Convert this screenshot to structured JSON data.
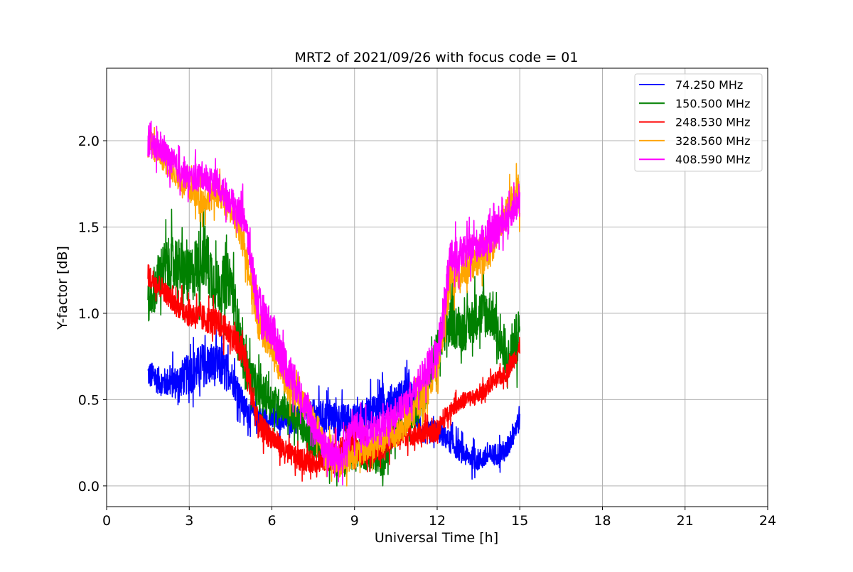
{
  "chart_data": {
    "type": "line",
    "title": "MRT2 of 2021/09/26 with focus code = 01",
    "xlabel": "Universal Time [h]",
    "ylabel": "Y-factor [dB]",
    "xlim": [
      0,
      24
    ],
    "ylim": [
      -0.12,
      2.42
    ],
    "xticks": [
      0,
      3,
      6,
      9,
      12,
      15,
      18,
      21,
      24
    ],
    "xtick_labels": [
      "0",
      "3",
      "6",
      "9",
      "12",
      "15",
      "18",
      "21",
      "24"
    ],
    "yticks": [
      0.0,
      0.5,
      1.0,
      1.5,
      2.0
    ],
    "ytick_labels": [
      "0.0",
      "0.5",
      "1.0",
      "1.5",
      "2.0"
    ],
    "grid": true,
    "legend_position": "top-right",
    "series": [
      {
        "name": "74.250 MHz",
        "color": "#0000ff",
        "x": [
          1.5,
          2.0,
          2.5,
          3.0,
          3.5,
          4.0,
          4.5,
          5.0,
          5.5,
          6.0,
          6.5,
          7.0,
          7.5,
          8.0,
          8.5,
          9.0,
          9.5,
          10.0,
          10.5,
          11.0,
          11.5,
          12.0,
          12.5,
          13.0,
          13.5,
          14.0,
          14.5,
          15.0
        ],
        "y": [
          0.65,
          0.6,
          0.6,
          0.65,
          0.7,
          0.7,
          0.65,
          0.45,
          0.4,
          0.38,
          0.38,
          0.4,
          0.42,
          0.4,
          0.38,
          0.38,
          0.42,
          0.48,
          0.5,
          0.55,
          0.3,
          0.32,
          0.25,
          0.18,
          0.15,
          0.18,
          0.2,
          0.4
        ],
        "noise": [
          0.1,
          0.1,
          0.12,
          0.15,
          0.16,
          0.15,
          0.12,
          0.1,
          0.08,
          0.07,
          0.07,
          0.08,
          0.1,
          0.12,
          0.12,
          0.12,
          0.12,
          0.12,
          0.12,
          0.12,
          0.08,
          0.08,
          0.08,
          0.08,
          0.08,
          0.08,
          0.08,
          0.1
        ]
      },
      {
        "name": "150.500 MHz",
        "color": "#008000",
        "x": [
          1.5,
          2.0,
          2.5,
          3.0,
          3.5,
          4.0,
          4.5,
          5.0,
          5.5,
          6.0,
          6.5,
          7.0,
          7.5,
          8.0,
          8.5,
          9.0,
          9.5,
          10.0,
          10.5,
          11.0,
          11.5,
          12.0,
          12.5,
          13.0,
          13.5,
          14.0,
          14.5,
          15.0
        ],
        "y": [
          1.05,
          1.25,
          1.3,
          1.2,
          1.35,
          1.15,
          1.2,
          0.7,
          0.55,
          0.5,
          0.45,
          0.35,
          0.25,
          0.18,
          0.12,
          0.2,
          0.15,
          0.12,
          0.3,
          0.4,
          0.5,
          0.8,
          0.95,
          0.9,
          1.0,
          1.0,
          0.7,
          0.9
        ],
        "noise": [
          0.15,
          0.2,
          0.2,
          0.2,
          0.25,
          0.2,
          0.2,
          0.15,
          0.15,
          0.12,
          0.1,
          0.1,
          0.1,
          0.1,
          0.1,
          0.1,
          0.08,
          0.08,
          0.1,
          0.1,
          0.12,
          0.15,
          0.18,
          0.15,
          0.18,
          0.18,
          0.15,
          0.2
        ]
      },
      {
        "name": "248.530 MHz",
        "color": "#ff0000",
        "x": [
          1.5,
          2.0,
          2.5,
          3.0,
          3.5,
          4.0,
          4.5,
          5.0,
          5.5,
          6.0,
          6.5,
          7.0,
          7.5,
          8.0,
          8.5,
          9.0,
          9.5,
          10.0,
          10.5,
          11.0,
          11.5,
          12.0,
          12.5,
          13.0,
          13.5,
          14.0,
          14.5,
          15.0
        ],
        "y": [
          1.22,
          1.15,
          1.05,
          1.0,
          0.97,
          0.95,
          0.88,
          0.75,
          0.35,
          0.28,
          0.2,
          0.15,
          0.14,
          0.16,
          0.2,
          0.22,
          0.18,
          0.22,
          0.28,
          0.3,
          0.3,
          0.32,
          0.45,
          0.5,
          0.52,
          0.6,
          0.65,
          0.8
        ],
        "noise": [
          0.08,
          0.08,
          0.08,
          0.1,
          0.1,
          0.1,
          0.1,
          0.12,
          0.1,
          0.08,
          0.08,
          0.08,
          0.08,
          0.1,
          0.1,
          0.1,
          0.08,
          0.08,
          0.08,
          0.08,
          0.08,
          0.08,
          0.06,
          0.06,
          0.06,
          0.06,
          0.06,
          0.08
        ]
      },
      {
        "name": "328.560 MHz",
        "color": "#ffa500",
        "x": [
          1.5,
          2.0,
          2.5,
          3.0,
          3.5,
          4.0,
          4.5,
          5.0,
          5.5,
          6.0,
          6.5,
          7.0,
          7.5,
          8.0,
          8.5,
          9.0,
          9.5,
          10.0,
          10.5,
          11.0,
          11.5,
          12.0,
          12.5,
          13.0,
          13.5,
          14.0,
          14.5,
          15.0
        ],
        "y": [
          2.0,
          1.9,
          1.8,
          1.72,
          1.65,
          1.7,
          1.6,
          1.4,
          0.95,
          0.8,
          0.6,
          0.5,
          0.4,
          0.2,
          0.12,
          0.18,
          0.22,
          0.26,
          0.3,
          0.38,
          0.55,
          0.7,
          1.2,
          1.25,
          1.3,
          1.35,
          1.6,
          1.7
        ],
        "noise": [
          0.1,
          0.08,
          0.08,
          0.1,
          0.1,
          0.1,
          0.1,
          0.12,
          0.12,
          0.12,
          0.12,
          0.1,
          0.1,
          0.1,
          0.1,
          0.1,
          0.1,
          0.1,
          0.1,
          0.1,
          0.12,
          0.12,
          0.15,
          0.12,
          0.1,
          0.1,
          0.1,
          0.15
        ]
      },
      {
        "name": "408.590 MHz",
        "color": "#ff00ff",
        "x": [
          1.5,
          2.0,
          2.5,
          3.0,
          3.5,
          4.0,
          4.5,
          5.0,
          5.5,
          6.0,
          6.5,
          7.0,
          7.5,
          8.0,
          8.5,
          9.0,
          9.5,
          10.0,
          10.5,
          11.0,
          11.5,
          12.0,
          12.5,
          13.0,
          13.5,
          14.0,
          14.5,
          15.0
        ],
        "y": [
          1.97,
          1.95,
          1.85,
          1.78,
          1.8,
          1.75,
          1.65,
          1.55,
          1.05,
          0.9,
          0.7,
          0.55,
          0.35,
          0.2,
          0.15,
          0.35,
          0.3,
          0.35,
          0.42,
          0.5,
          0.65,
          0.75,
          1.32,
          1.35,
          1.4,
          1.45,
          1.55,
          1.65
        ],
        "noise": [
          0.1,
          0.1,
          0.1,
          0.1,
          0.1,
          0.1,
          0.1,
          0.12,
          0.15,
          0.15,
          0.15,
          0.12,
          0.12,
          0.12,
          0.12,
          0.12,
          0.1,
          0.1,
          0.1,
          0.1,
          0.12,
          0.15,
          0.15,
          0.12,
          0.12,
          0.12,
          0.1,
          0.12
        ]
      }
    ]
  }
}
